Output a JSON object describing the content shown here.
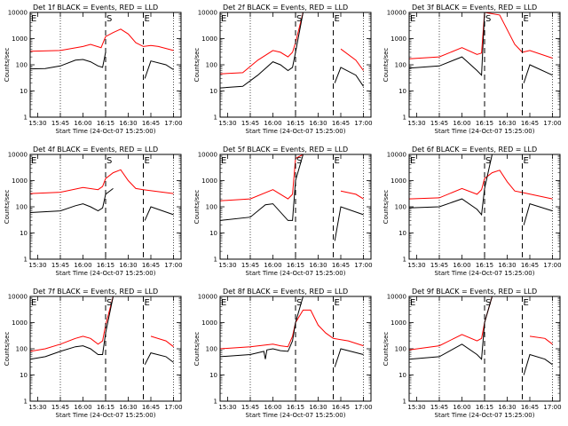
{
  "chart_data": [
    {
      "type": "line",
      "title": "Det 1f BLACK = Events, RED = LLD",
      "xlabel": "Start Time (24-Oct-07 15:25:00)",
      "ylabel": "Counts/sec",
      "yscale": "log",
      "ylim": [
        1,
        10000
      ],
      "xlim": [
        "15:25",
        "17:05"
      ],
      "xticks": [
        "15:30",
        "15:45",
        "16:00",
        "16:15",
        "16:30",
        "16:45",
        "17:00"
      ],
      "yticks": [
        "1",
        "10",
        "100",
        "1000",
        "10000"
      ],
      "markers": [
        {
          "label": "E",
          "time": "15:25"
        },
        {
          "label": "S",
          "time": "16:15"
        },
        {
          "label": "E",
          "time": "16:40"
        }
      ],
      "series": [
        {
          "color": "#ff0000",
          "x": [
            "15:25",
            "15:45",
            "16:00",
            "16:05",
            "16:12",
            "16:15",
            "16:20",
            "16:25",
            "16:30",
            "16:35",
            "16:40",
            "16:45",
            "16:50",
            "17:00"
          ],
          "y": [
            330,
            350,
            500,
            600,
            450,
            1200,
            1700,
            2300,
            1500,
            700,
            500,
            550,
            500,
            350
          ]
        },
        {
          "color": "#000000",
          "x": [
            "15:25",
            "15:35",
            "15:45",
            "15:55",
            "16:00",
            "16:05",
            "16:10",
            "16:13",
            "16:15",
            "16:30",
            "16:40",
            "16:41",
            "16:45",
            "16:55",
            "17:00"
          ],
          "y": [
            70,
            72,
            90,
            150,
            160,
            130,
            90,
            80,
            300,
            null,
            null,
            30,
            140,
            100,
            65
          ]
        }
      ]
    },
    {
      "type": "line",
      "title": "Det 2f BLACK = Events, RED = LLD",
      "xlabel": "Start Time (24-Oct-07 15:25:00)",
      "ylabel": "Counts/sec",
      "yscale": "log",
      "ylim": [
        1,
        10000
      ],
      "xlim": [
        "15:25",
        "17:05"
      ],
      "xticks": [
        "15:30",
        "15:45",
        "16:00",
        "16:15",
        "16:30",
        "16:45",
        "17:00"
      ],
      "yticks": [
        "1",
        "10",
        "100",
        "1000",
        "10000"
      ],
      "markers": [
        {
          "label": "E",
          "time": "15:25"
        },
        {
          "label": "S",
          "time": "16:15"
        },
        {
          "label": "E",
          "time": "16:40"
        }
      ],
      "series": [
        {
          "color": "#ff0000",
          "x": [
            "15:25",
            "15:40",
            "15:50",
            "16:00",
            "16:05",
            "16:10",
            "16:13",
            "16:15",
            "16:20",
            "16:40",
            "16:45",
            "16:55",
            "17:00"
          ],
          "y": [
            45,
            50,
            150,
            350,
            300,
            200,
            300,
            700,
            10000,
            null,
            400,
            150,
            60
          ]
        },
        {
          "color": "#000000",
          "x": [
            "15:25",
            "15:40",
            "15:50",
            "16:00",
            "16:05",
            "16:10",
            "16:13",
            "16:15",
            "16:20",
            "16:40",
            "16:41",
            "16:45",
            "16:55",
            "17:00"
          ],
          "y": [
            13,
            15,
            40,
            130,
            100,
            60,
            80,
            300,
            10000,
            null,
            20,
            80,
            40,
            15
          ]
        }
      ]
    },
    {
      "type": "line",
      "title": "Det 3f BLACK = Events, RED = LLD",
      "xlabel": "Start Time (24-Oct-07 15:25:00)",
      "ylabel": "Counts/sec",
      "yscale": "log",
      "ylim": [
        1,
        10000
      ],
      "xlim": [
        "15:25",
        "17:05"
      ],
      "xticks": [
        "15:30",
        "15:45",
        "16:00",
        "16:15",
        "16:30",
        "16:45",
        "17:00"
      ],
      "yticks": [
        "1",
        "10",
        "100",
        "1000",
        "10000"
      ],
      "markers": [
        {
          "label": "E",
          "time": "15:25"
        },
        {
          "label": "S",
          "time": "16:15"
        },
        {
          "label": "E",
          "time": "16:40"
        }
      ],
      "series": [
        {
          "color": "#ff0000",
          "x": [
            "15:25",
            "15:45",
            "16:00",
            "16:10",
            "16:13",
            "16:15",
            "16:25",
            "16:35",
            "16:40",
            "16:45",
            "17:00"
          ],
          "y": [
            170,
            200,
            450,
            250,
            280,
            10000,
            8000,
            600,
            300,
            350,
            180
          ]
        },
        {
          "color": "#000000",
          "x": [
            "15:25",
            "15:45",
            "16:00",
            "16:10",
            "16:13",
            "16:15",
            "16:25",
            "16:40",
            "16:41",
            "16:45",
            "17:00"
          ],
          "y": [
            75,
            90,
            200,
            60,
            40,
            10000,
            null,
            null,
            20,
            100,
            40
          ]
        }
      ]
    },
    {
      "type": "line",
      "title": "Det 4f BLACK = Events, RED = LLD",
      "xlabel": "Start Time (24-Oct-07 15:25:00)",
      "ylabel": "Counts/sec",
      "yscale": "log",
      "ylim": [
        1,
        10000
      ],
      "xlim": [
        "15:25",
        "17:05"
      ],
      "xticks": [
        "15:30",
        "15:45",
        "16:00",
        "16:15",
        "16:30",
        "16:45",
        "17:00"
      ],
      "yticks": [
        "1",
        "10",
        "100",
        "1000",
        "10000"
      ],
      "markers": [
        {
          "label": "E",
          "time": "15:25"
        },
        {
          "label": "S",
          "time": "16:15"
        },
        {
          "label": "E",
          "time": "16:40"
        }
      ],
      "series": [
        {
          "color": "#ff0000",
          "x": [
            "15:25",
            "15:45",
            "16:00",
            "16:10",
            "16:13",
            "16:15",
            "16:20",
            "16:25",
            "16:30",
            "16:35",
            "16:40",
            "17:00"
          ],
          "y": [
            320,
            360,
            550,
            450,
            600,
            1200,
            2000,
            2600,
            1000,
            500,
            450,
            320
          ]
        },
        {
          "color": "#000000",
          "x": [
            "15:25",
            "15:45",
            "15:55",
            "16:00",
            "16:05",
            "16:10",
            "16:13",
            "16:15",
            "16:20",
            "16:40",
            "16:41",
            "16:45",
            "17:00"
          ],
          "y": [
            60,
            70,
            110,
            130,
            100,
            70,
            90,
            300,
            500,
            null,
            30,
            100,
            50
          ]
        }
      ]
    },
    {
      "type": "line",
      "title": "Det 5f BLACK = Events, RED = LLD",
      "xlabel": "Start Time (24-Oct-07 15:25:00)",
      "ylabel": "Counts/sec",
      "yscale": "log",
      "ylim": [
        1,
        10000
      ],
      "xlim": [
        "15:25",
        "17:05"
      ],
      "xticks": [
        "15:30",
        "15:45",
        "16:00",
        "16:15",
        "16:30",
        "16:45",
        "17:00"
      ],
      "yticks": [
        "1",
        "10",
        "100",
        "1000",
        "10000"
      ],
      "markers": [
        {
          "label": "E",
          "time": "15:25"
        },
        {
          "label": "S",
          "time": "16:15"
        },
        {
          "label": "E",
          "time": "16:40"
        }
      ],
      "series": [
        {
          "color": "#ff0000",
          "x": [
            "15:25",
            "15:45",
            "16:00",
            "16:10",
            "16:13",
            "16:15",
            "16:20",
            "16:40",
            "16:45",
            "16:55",
            "17:00"
          ],
          "y": [
            170,
            200,
            450,
            200,
            300,
            7000,
            10000,
            null,
            400,
            300,
            200
          ]
        },
        {
          "color": "#000000",
          "x": [
            "15:25",
            "15:45",
            "15:55",
            "16:00",
            "16:10",
            "16:13",
            "16:15",
            "16:20",
            "16:40",
            "16:41",
            "16:45",
            "17:00"
          ],
          "y": [
            30,
            40,
            120,
            130,
            30,
            30,
            1000,
            10000,
            null,
            5,
            100,
            50
          ]
        }
      ]
    },
    {
      "type": "line",
      "title": "Det 6f BLACK = Events, RED = LLD",
      "xlabel": "Start Time (24-Oct-07 15:25:00)",
      "ylabel": "Counts/sec",
      "yscale": "log",
      "ylim": [
        1,
        10000
      ],
      "xlim": [
        "15:25",
        "17:05"
      ],
      "xticks": [
        "15:30",
        "15:45",
        "16:00",
        "16:15",
        "16:30",
        "16:45",
        "17:00"
      ],
      "yticks": [
        "1",
        "10",
        "100",
        "1000",
        "10000"
      ],
      "markers": [
        {
          "label": "E",
          "time": "15:25"
        },
        {
          "label": "S",
          "time": "16:15"
        },
        {
          "label": "E",
          "time": "16:40"
        }
      ],
      "series": [
        {
          "color": "#ff0000",
          "x": [
            "15:25",
            "15:45",
            "16:00",
            "16:10",
            "16:13",
            "16:15",
            "16:20",
            "16:25",
            "16:30",
            "16:35",
            "16:40",
            "17:00"
          ],
          "y": [
            200,
            220,
            500,
            300,
            450,
            1200,
            2000,
            2500,
            900,
            400,
            350,
            200
          ]
        },
        {
          "color": "#000000",
          "x": [
            "15:25",
            "15:45",
            "16:00",
            "16:10",
            "16:13",
            "16:15",
            "16:20",
            "16:40",
            "16:41",
            "16:45",
            "17:00"
          ],
          "y": [
            90,
            100,
            200,
            80,
            50,
            500,
            10000,
            null,
            20,
            130,
            70
          ]
        }
      ]
    },
    {
      "type": "line",
      "title": "Det 7f BLACK = Events, RED = LLD",
      "xlabel": "Start Time (24-Oct-07 15:25:00)",
      "ylabel": "Counts/sec",
      "yscale": "log",
      "ylim": [
        1,
        10000
      ],
      "xlim": [
        "15:25",
        "17:05"
      ],
      "xticks": [
        "15:30",
        "15:45",
        "16:00",
        "16:15",
        "16:30",
        "16:45",
        "17:00"
      ],
      "yticks": [
        "1",
        "10",
        "100",
        "1000",
        "10000"
      ],
      "markers": [
        {
          "label": "E",
          "time": "15:25"
        },
        {
          "label": "S",
          "time": "16:15"
        },
        {
          "label": "E",
          "time": "16:40"
        }
      ],
      "series": [
        {
          "color": "#ff0000",
          "x": [
            "15:25",
            "15:35",
            "15:45",
            "15:55",
            "16:00",
            "16:05",
            "16:10",
            "16:13",
            "16:15",
            "16:20",
            "16:40",
            "16:45",
            "16:55",
            "17:00"
          ],
          "y": [
            80,
            100,
            150,
            250,
            300,
            250,
            150,
            200,
            800,
            10000,
            null,
            300,
            200,
            120
          ]
        },
        {
          "color": "#000000",
          "x": [
            "15:25",
            "15:35",
            "15:45",
            "15:55",
            "16:00",
            "16:05",
            "16:10",
            "16:13",
            "16:15",
            "16:20",
            "16:40",
            "16:41",
            "16:45",
            "16:55",
            "17:00"
          ],
          "y": [
            40,
            50,
            80,
            120,
            130,
            100,
            60,
            60,
            400,
            10000,
            null,
            25,
            70,
            50,
            30
          ]
        }
      ]
    },
    {
      "type": "line",
      "title": "Det 8f BLACK = Events, RED = LLD",
      "xlabel": "Start Time (24-Oct-07 15:25:00)",
      "ylabel": "Counts/sec",
      "yscale": "log",
      "ylim": [
        1,
        10000
      ],
      "xlim": [
        "15:25",
        "17:05"
      ],
      "xticks": [
        "15:30",
        "15:45",
        "16:00",
        "16:15",
        "16:30",
        "16:45",
        "17:00"
      ],
      "yticks": [
        "1",
        "10",
        "100",
        "1000",
        "10000"
      ],
      "markers": [
        {
          "label": "E",
          "time": "15:25"
        },
        {
          "label": "S",
          "time": "16:15"
        },
        {
          "label": "E",
          "time": "16:40"
        }
      ],
      "series": [
        {
          "color": "#ff0000",
          "x": [
            "15:25",
            "15:45",
            "15:55",
            "16:00",
            "16:05",
            "16:10",
            "16:13",
            "16:15",
            "16:20",
            "16:25",
            "16:30",
            "16:35",
            "16:40",
            "16:50",
            "17:00"
          ],
          "y": [
            100,
            120,
            140,
            150,
            130,
            120,
            300,
            1000,
            3000,
            3000,
            800,
            400,
            250,
            200,
            130
          ]
        },
        {
          "color": "#000000",
          "x": [
            "15:25",
            "15:45",
            "15:54",
            "15:55",
            "15:56",
            "16:00",
            "16:05",
            "16:10",
            "16:13",
            "16:15",
            "16:20",
            "16:35",
            "16:40",
            "16:41",
            "16:45",
            "17:00"
          ],
          "y": [
            50,
            60,
            80,
            40,
            90,
            100,
            85,
            80,
            200,
            1000,
            10000,
            null,
            null,
            20,
            100,
            60
          ]
        }
      ]
    },
    {
      "type": "line",
      "title": "Det 9f BLACK = Events, RED = LLD",
      "xlabel": "Start Time (24-Oct-07 15:25:00)",
      "ylabel": "Counts/sec",
      "yscale": "log",
      "ylim": [
        1,
        10000
      ],
      "xlim": [
        "15:25",
        "17:05"
      ],
      "xticks": [
        "15:30",
        "15:45",
        "16:00",
        "16:15",
        "16:30",
        "16:45",
        "17:00"
      ],
      "yticks": [
        "1",
        "10",
        "100",
        "1000",
        "10000"
      ],
      "markers": [
        {
          "label": "E",
          "time": "15:25"
        },
        {
          "label": "S",
          "time": "16:15"
        },
        {
          "label": "E",
          "time": "16:40"
        }
      ],
      "series": [
        {
          "color": "#ff0000",
          "x": [
            "15:25",
            "15:45",
            "16:00",
            "16:10",
            "16:13",
            "16:15",
            "16:20",
            "16:40",
            "16:45",
            "16:55",
            "17:00"
          ],
          "y": [
            90,
            130,
            350,
            200,
            250,
            1000,
            10000,
            null,
            300,
            250,
            150
          ]
        },
        {
          "color": "#000000",
          "x": [
            "15:25",
            "15:45",
            "16:00",
            "16:10",
            "16:13",
            "16:15",
            "16:20",
            "16:40",
            "16:41",
            "16:45",
            "16:55",
            "17:00"
          ],
          "y": [
            40,
            50,
            150,
            60,
            40,
            1000,
            10000,
            null,
            10,
            60,
            40,
            25
          ]
        }
      ]
    }
  ]
}
